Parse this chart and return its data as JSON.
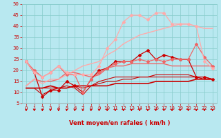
{
  "xlabel": "Vent moyen/en rafales ( km/h )",
  "x": [
    0,
    1,
    2,
    3,
    4,
    5,
    6,
    7,
    8,
    9,
    10,
    11,
    12,
    13,
    14,
    15,
    16,
    17,
    18,
    19,
    20,
    21,
    22,
    23
  ],
  "ylim": [
    5,
    50
  ],
  "xlim": [
    -0.5,
    23.5
  ],
  "yticks": [
    5,
    10,
    15,
    20,
    25,
    30,
    35,
    40,
    45,
    50
  ],
  "xticks": [
    0,
    1,
    2,
    3,
    4,
    5,
    6,
    7,
    8,
    9,
    10,
    11,
    12,
    13,
    14,
    15,
    16,
    17,
    18,
    19,
    20,
    21,
    22,
    23
  ],
  "bg_color": "#b8e8f0",
  "grid_color": "#88cccc",
  "lines": [
    {
      "y": [
        24,
        19,
        8,
        11,
        11,
        15,
        13,
        10,
        16,
        20,
        21,
        24,
        24,
        24,
        27,
        29,
        25,
        27,
        26,
        25,
        25,
        17,
        17,
        16
      ],
      "color": "#cc0000",
      "lw": 0.9,
      "marker": "D",
      "ms": 2.0,
      "zorder": 5
    },
    {
      "y": [
        12,
        12,
        12,
        13,
        12,
        12,
        13,
        13,
        13,
        13,
        13,
        14,
        14,
        14,
        14,
        14,
        15,
        15,
        15,
        15,
        15,
        16,
        16,
        16
      ],
      "color": "#cc0000",
      "lw": 1.2,
      "marker": null,
      "ms": 0,
      "zorder": 4
    },
    {
      "y": [
        12,
        12,
        12,
        12,
        12,
        13,
        12,
        9,
        13,
        15,
        16,
        17,
        17,
        17,
        17,
        17,
        18,
        18,
        18,
        18,
        18,
        17,
        17,
        16
      ],
      "color": "#cc0000",
      "lw": 0.8,
      "marker": null,
      "ms": 0,
      "zorder": 3
    },
    {
      "y": [
        12,
        12,
        9,
        11,
        12,
        12,
        13,
        12,
        13,
        14,
        15,
        15,
        16,
        16,
        17,
        17,
        17,
        17,
        17,
        17,
        17,
        17,
        16,
        16
      ],
      "color": "#cc0000",
      "lw": 0.8,
      "marker": null,
      "ms": 0,
      "zorder": 3
    },
    {
      "y": [
        24,
        20,
        17,
        19,
        22,
        18,
        18,
        10,
        16,
        19,
        21,
        23,
        24,
        24,
        25,
        24,
        25,
        24,
        25,
        25,
        25,
        32,
        26,
        22
      ],
      "color": "#ee6666",
      "lw": 0.9,
      "marker": "D",
      "ms": 2.0,
      "zorder": 5
    },
    {
      "y": [
        13,
        16,
        15,
        15,
        16,
        19,
        19,
        18,
        17,
        18,
        21,
        22,
        22,
        23,
        23,
        23,
        23,
        23,
        22,
        22,
        22,
        22,
        22,
        22
      ],
      "color": "#ee6666",
      "lw": 1.0,
      "marker": null,
      "ms": 0,
      "zorder": 4
    },
    {
      "y": [
        24,
        19,
        17,
        19,
        22,
        19,
        18,
        18,
        18,
        22,
        30,
        34,
        42,
        45,
        45,
        43,
        46,
        46,
        41,
        41,
        41,
        40,
        24,
        21
      ],
      "color": "#ffaaaa",
      "lw": 0.9,
      "marker": "D",
      "ms": 2.0,
      "zorder": 5
    },
    {
      "y": [
        13,
        16,
        14,
        16,
        16,
        18,
        20,
        22,
        23,
        24,
        27,
        29,
        32,
        34,
        36,
        37,
        38,
        39,
        40,
        41,
        41,
        40,
        39,
        39
      ],
      "color": "#ffaaaa",
      "lw": 1.0,
      "marker": null,
      "ms": 0,
      "zorder": 4
    }
  ],
  "arrow_color": "#cc0000",
  "title_color": "#cc0000",
  "tick_fontsize": 5.0,
  "xlabel_fontsize": 6.0
}
